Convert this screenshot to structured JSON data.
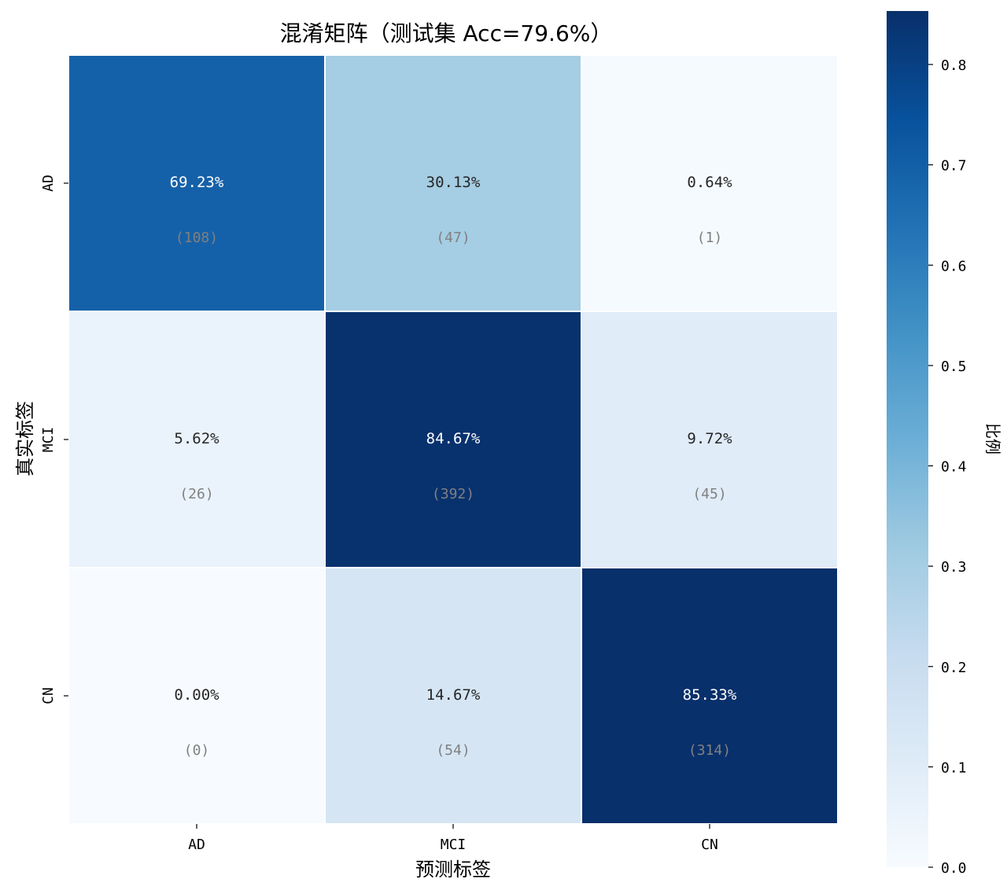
{
  "chart_data": {
    "type": "heatmap",
    "title": "混淆矩阵（测试集 Acc=79.6%）",
    "xlabel": "预测标签",
    "ylabel": "真实标签",
    "x_categories": [
      "AD",
      "MCI",
      "CN"
    ],
    "y_categories": [
      "AD",
      "MCI",
      "CN"
    ],
    "values": [
      [
        0.6923,
        0.3013,
        0.0064
      ],
      [
        0.0562,
        0.8467,
        0.0972
      ],
      [
        0.0,
        0.1467,
        0.8533
      ]
    ],
    "value_labels": [
      [
        "69.23%",
        "30.13%",
        "0.64%"
      ],
      [
        "5.62%",
        "84.67%",
        "9.72%"
      ],
      [
        "0.00%",
        "14.67%",
        "85.33%"
      ]
    ],
    "count_labels": [
      [
        "(108)",
        "(47)",
        "(1)"
      ],
      [
        "(26)",
        "(392)",
        "(45)"
      ],
      [
        "(0)",
        "(54)",
        "(314)"
      ]
    ],
    "colormap": "Blues",
    "colorbar": {
      "label": "比例",
      "range": [
        0,
        0.8533
      ],
      "ticks": [
        0.0,
        0.1,
        0.2,
        0.3,
        0.4,
        0.5,
        0.6,
        0.7,
        0.8
      ],
      "tick_labels": [
        "0.0",
        "0.1",
        "0.2",
        "0.3",
        "0.4",
        "0.5",
        "0.6",
        "0.7",
        "0.8"
      ],
      "placement": "right"
    },
    "grid": false
  }
}
